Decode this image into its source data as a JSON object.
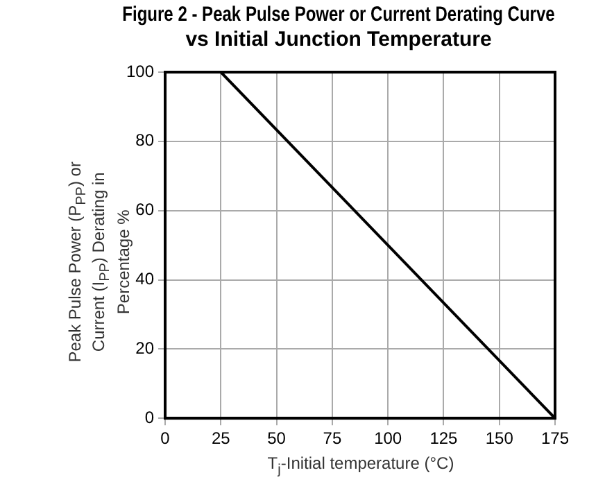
{
  "chart_data": {
    "type": "line",
    "title": "Figure 2 - Peak Pulse Power or Current Derating Curve\nvs Initial Junction Temperature",
    "xlabel": "T$_{j}$-Initial temperature (°C)",
    "ylabel": "Peak Pulse Power (P$_{PP}$) or Current (I$_{PP}$) Derating in Percentage %",
    "series": [
      {
        "x": [
          25,
          175
        ],
        "values": [
          100,
          0
        ],
        "color": "#000000"
      }
    ],
    "xlim": [
      0,
      175
    ],
    "xticks": [
      0,
      25,
      50,
      75,
      100,
      125,
      150,
      175
    ],
    "ylim": [
      0,
      100
    ],
    "yticks": [
      0,
      20,
      40,
      60,
      80,
      100
    ],
    "grid": true,
    "legend": false,
    "marker": "none",
    "line_style": "solid"
  }
}
